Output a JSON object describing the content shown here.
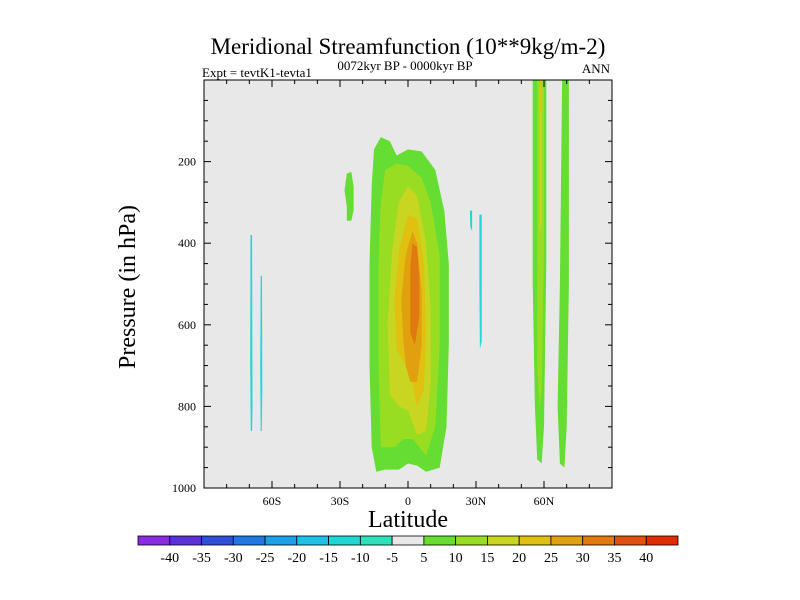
{
  "chart_data": {
    "type": "contour",
    "title": "Meridional Streamfunction (10**9kg/m-2)",
    "left_label": "Expt = tevtK1-tevta1",
    "center_label": "0072kyr BP - 0000kyr BP",
    "right_label": "ANN",
    "xlabel": "Latitude",
    "ylabel": "Pressure (in hPa)",
    "xlim": [
      -90,
      90
    ],
    "ylim": [
      0,
      1000
    ],
    "x_ticks": [
      {
        "value": -60,
        "label": "60S"
      },
      {
        "value": -30,
        "label": "30S"
      },
      {
        "value": 0,
        "label": "0"
      },
      {
        "value": 30,
        "label": "30N"
      },
      {
        "value": 60,
        "label": "60N"
      }
    ],
    "y_ticks": [
      {
        "value": 200,
        "label": "200"
      },
      {
        "value": 400,
        "label": "400"
      },
      {
        "value": 600,
        "label": "600"
      },
      {
        "value": 800,
        "label": "800"
      },
      {
        "value": 1000,
        "label": "1000"
      }
    ],
    "background_color": "#e8e8e8",
    "colorbar": {
      "labels": [
        "-40",
        "-35",
        "-30",
        "-25",
        "-20",
        "-15",
        "-10",
        "-5",
        "5",
        "10",
        "15",
        "20",
        "25",
        "30",
        "35",
        "40"
      ],
      "colors": [
        "#8a2be2",
        "#5a32d6",
        "#2f4fd8",
        "#1f78e0",
        "#1ea0e6",
        "#1ec0e6",
        "#22d6d6",
        "#30e0b8",
        "#e8e8e8",
        "#66dd33",
        "#99dd22",
        "#c8d622",
        "#e0c010",
        "#e0a010",
        "#e07a10",
        "#e05010",
        "#e02a00"
      ]
    },
    "regions": [
      {
        "name": "tropical-cell",
        "level": 10,
        "color": "#66dd33",
        "points": [
          [
            -14,
            960
          ],
          [
            -16,
            900
          ],
          [
            -17,
            700
          ],
          [
            -17,
            450
          ],
          [
            -16,
            260
          ],
          [
            -15,
            170
          ],
          [
            -12,
            140
          ],
          [
            -8,
            150
          ],
          [
            -5,
            185
          ],
          [
            0,
            170
          ],
          [
            6,
            175
          ],
          [
            12,
            220
          ],
          [
            16,
            320
          ],
          [
            18,
            450
          ],
          [
            18,
            650
          ],
          [
            17,
            850
          ],
          [
            14,
            950
          ],
          [
            8,
            960
          ],
          [
            4,
            945
          ],
          [
            0,
            940
          ],
          [
            -4,
            955
          ],
          [
            -10,
            955
          ]
        ]
      },
      {
        "name": "tropical-cell",
        "level": 15,
        "color": "#99dd22",
        "points": [
          [
            -12,
            900
          ],
          [
            -13,
            700
          ],
          [
            -13,
            450
          ],
          [
            -12,
            300
          ],
          [
            -10,
            220
          ],
          [
            -5,
            205
          ],
          [
            0,
            210
          ],
          [
            6,
            240
          ],
          [
            10,
            300
          ],
          [
            14,
            430
          ],
          [
            14,
            650
          ],
          [
            12,
            850
          ],
          [
            8,
            920
          ],
          [
            2,
            880
          ],
          [
            -2,
            880
          ],
          [
            -6,
            900
          ]
        ]
      },
      {
        "name": "tropical-cell",
        "level": 20,
        "color": "#c8d622",
        "points": [
          [
            -8,
            770
          ],
          [
            -9,
            600
          ],
          [
            -7,
            420
          ],
          [
            -4,
            300
          ],
          [
            0,
            260
          ],
          [
            4,
            285
          ],
          [
            8,
            400
          ],
          [
            10,
            560
          ],
          [
            10,
            740
          ],
          [
            8,
            860
          ],
          [
            4,
            870
          ],
          [
            0,
            810
          ],
          [
            -4,
            800
          ]
        ]
      },
      {
        "name": "tropical-cell",
        "level": 25,
        "color": "#e0c010",
        "points": [
          [
            -5,
            660
          ],
          [
            -6,
            540
          ],
          [
            -4,
            420
          ],
          [
            0,
            330
          ],
          [
            4,
            340
          ],
          [
            7,
            450
          ],
          [
            8,
            620
          ],
          [
            7,
            760
          ],
          [
            4,
            800
          ],
          [
            1,
            720
          ],
          [
            -2,
            690
          ]
        ]
      },
      {
        "name": "tropical-cell",
        "level": 30,
        "color": "#e0a010",
        "points": [
          [
            -2,
            640
          ],
          [
            -3,
            540
          ],
          [
            -1,
            430
          ],
          [
            2,
            370
          ],
          [
            4,
            400
          ],
          [
            6,
            520
          ],
          [
            6,
            650
          ],
          [
            4,
            740
          ],
          [
            1,
            740
          ],
          [
            -1,
            700
          ]
        ]
      },
      {
        "name": "tropical-cell",
        "level": 35,
        "color": "#e07a10",
        "points": [
          [
            1,
            560
          ],
          [
            1,
            460
          ],
          [
            2,
            400
          ],
          [
            4,
            410
          ],
          [
            5,
            480
          ],
          [
            5,
            580
          ],
          [
            3,
            650
          ],
          [
            1,
            620
          ]
        ]
      },
      {
        "name": "small-cell",
        "level": 10,
        "color": "#66dd33",
        "points": [
          [
            -27,
            310
          ],
          [
            -28,
            270
          ],
          [
            -27,
            230
          ],
          [
            -25,
            225
          ],
          [
            -24,
            260
          ],
          [
            -24,
            320
          ],
          [
            -25,
            345
          ],
          [
            -27,
            345
          ]
        ]
      },
      {
        "name": "northern-band",
        "level": 10,
        "color": "#66dd33",
        "points": [
          [
            55,
            0
          ],
          [
            61,
            0
          ],
          [
            61,
            450
          ],
          [
            60,
            850
          ],
          [
            59,
            940
          ],
          [
            57,
            930
          ],
          [
            56,
            800
          ],
          [
            55,
            500
          ]
        ]
      },
      {
        "name": "northern-band",
        "level": 10,
        "color": "#66dd33",
        "points": [
          [
            68,
            0
          ],
          [
            71,
            0
          ],
          [
            71,
            500
          ],
          [
            70,
            850
          ],
          [
            69,
            950
          ],
          [
            67,
            940
          ],
          [
            66,
            800
          ],
          [
            67,
            500
          ]
        ]
      },
      {
        "name": "northern-band",
        "level": 15,
        "color": "#99dd22",
        "points": [
          [
            57,
            0
          ],
          [
            60,
            0
          ],
          [
            60,
            400
          ],
          [
            59,
            760
          ],
          [
            58,
            800
          ],
          [
            57,
            700
          ],
          [
            57,
            300
          ]
        ]
      },
      {
        "name": "northern-band",
        "level": 20,
        "color": "#c8d622",
        "points": [
          [
            58,
            20
          ],
          [
            59,
            20
          ],
          [
            59,
            350
          ],
          [
            58,
            380
          ]
        ]
      },
      {
        "name": "northern-band",
        "level": 25,
        "color": "#e0c010",
        "points": [
          [
            58.3,
            0
          ],
          [
            59,
            0
          ],
          [
            59,
            80
          ],
          [
            58.3,
            80
          ]
        ]
      },
      {
        "name": "negative-cell",
        "level": -10,
        "color": "#22d6d6",
        "points": [
          [
            -69.5,
            380
          ],
          [
            -68.8,
            380
          ],
          [
            -68.6,
            800
          ],
          [
            -68.8,
            860
          ],
          [
            -69.4,
            860
          ],
          [
            -69.6,
            700
          ]
        ]
      },
      {
        "name": "negative-cell",
        "level": -10,
        "color": "#22d6d6",
        "points": [
          [
            -65,
            480
          ],
          [
            -64.4,
            480
          ],
          [
            -64.3,
            760
          ],
          [
            -64.5,
            860
          ],
          [
            -65,
            860
          ],
          [
            -65.2,
            700
          ]
        ]
      },
      {
        "name": "negative-cell",
        "level": -10,
        "color": "#22d6d6",
        "points": [
          [
            31.5,
            330
          ],
          [
            32.5,
            330
          ],
          [
            32.5,
            640
          ],
          [
            31.7,
            660
          ],
          [
            31.5,
            500
          ]
        ]
      },
      {
        "name": "negative-cell",
        "level": -10,
        "color": "#22d6d6",
        "points": [
          [
            27.3,
            320
          ],
          [
            28.3,
            320
          ],
          [
            28.3,
            370
          ],
          [
            27.5,
            360
          ]
        ]
      }
    ]
  }
}
